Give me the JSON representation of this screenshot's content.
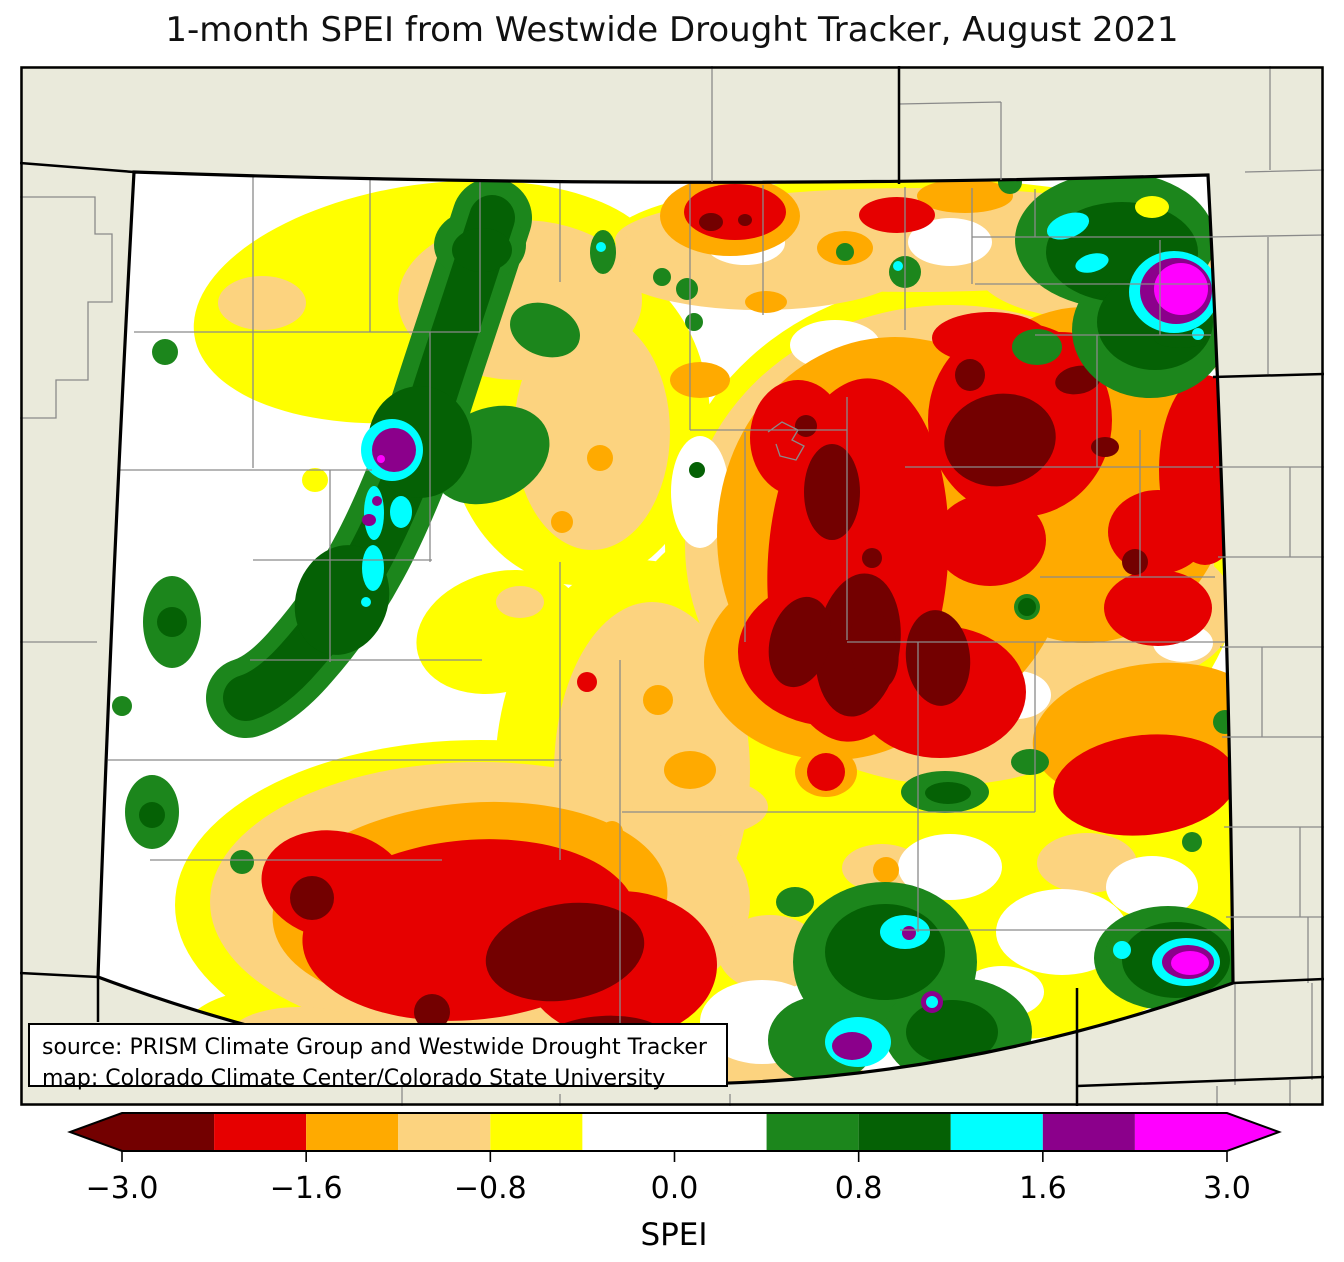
{
  "title": "1-month SPEI from Westwide Drought Tracker, August 2021",
  "map": {
    "source_box": {
      "line1": "source: PRISM Climate Group and Westwide Drought Tracker",
      "line2": "map: Colorado Climate Center/Colorado State University"
    }
  },
  "colorbar": {
    "label": "SPEI",
    "ticks": [
      {
        "value": -3.0,
        "label": "−3.0",
        "units": 0
      },
      {
        "value": -1.6,
        "label": "−1.6",
        "units": 2
      },
      {
        "value": -0.8,
        "label": "−0.8",
        "units": 4
      },
      {
        "value": 0.0,
        "label": "0.0",
        "units": 6
      },
      {
        "value": 0.8,
        "label": "0.8",
        "units": 8
      },
      {
        "value": 1.6,
        "label": "1.6",
        "units": 10
      },
      {
        "value": 3.0,
        "label": "3.0",
        "units": 12
      }
    ],
    "boundaries": [
      -3.0,
      -2.3,
      -1.6,
      -1.2,
      -0.8,
      -0.5,
      0.5,
      0.8,
      1.2,
      1.6,
      2.3,
      3.0
    ],
    "segments": [
      {
        "name": "-3.0 to -2.3",
        "color": "#730000",
        "units": 1
      },
      {
        "name": "-2.3 to -1.6",
        "color": "#E60000",
        "units": 1
      },
      {
        "name": "-1.6 to -1.2",
        "color": "#FFAA00",
        "units": 1
      },
      {
        "name": "-1.2 to -0.8",
        "color": "#FCD37F",
        "units": 1
      },
      {
        "name": "-0.8 to -0.5",
        "color": "#FFFF00",
        "units": 1
      },
      {
        "name": "-0.5 to 0.5",
        "color": "#FFFFFF",
        "units": 2
      },
      {
        "name": "0.5 to 0.8",
        "color": "#1C861C",
        "units": 1
      },
      {
        "name": "0.8 to 1.2",
        "color": "#056105",
        "units": 1
      },
      {
        "name": "1.2 to 1.6",
        "color": "#00FFFF",
        "units": 1
      },
      {
        "name": "1.6 to 2.3",
        "color": "#8B008B",
        "units": 1
      },
      {
        "name": "2.3 to 3.0",
        "color": "#FF00FF",
        "units": 1
      }
    ],
    "arrow_low_color": "#730000",
    "arrow_high_color": "#FF00FF"
  },
  "palette": {
    "outside_state_fill": "#EAEADB",
    "state_fill": "#FFFFFF",
    "county_line": "#8A8A8A",
    "state_border": "#000000",
    "spei_dry_extreme": "#730000",
    "spei_dry_severe": "#E60000",
    "spei_dry_moderate": "#FFAA00",
    "spei_dry_mild": "#FCD37F",
    "spei_dry_slight": "#FFFF00",
    "spei_neutral": "#FFFFFF",
    "spei_wet_slight": "#1C861C",
    "spei_wet_mild": "#056105",
    "spei_wet_moderate": "#00FFFF",
    "spei_wet_severe": "#8B008B",
    "spei_wet_extreme": "#FF00FF"
  }
}
